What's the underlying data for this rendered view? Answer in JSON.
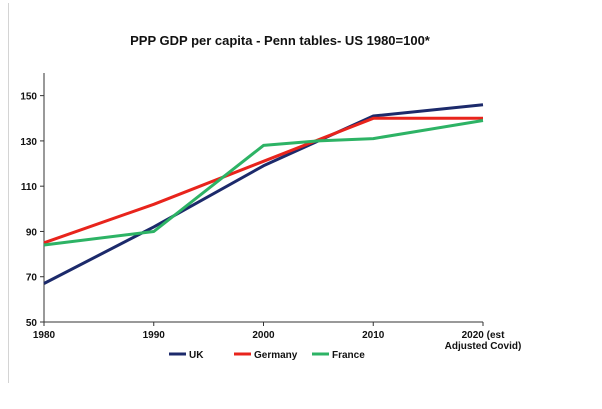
{
  "chart_data": {
    "type": "line",
    "title": "PPP GDP per capita - Penn tables- US 1980=100*",
    "xlabel": "",
    "ylabel": "",
    "categories": [
      "1980",
      "1990",
      "2000",
      "2010",
      "2020 (est Adjusted Covid)"
    ],
    "x_tick_labels": [
      [
        "1980"
      ],
      [
        "1990"
      ],
      [
        "2000"
      ],
      [
        "2010"
      ],
      [
        "2020 (est",
        "Adjusted Covid)"
      ]
    ],
    "x_values": [
      1980,
      1990,
      2000,
      2010,
      2020
    ],
    "xlim": [
      1980,
      2020
    ],
    "ylim": [
      50,
      160
    ],
    "y_ticks": [
      50,
      70,
      90,
      110,
      130,
      150
    ],
    "grid": false,
    "legend_position": "bottom",
    "series": [
      {
        "name": "UK",
        "color": "#1c2a6b",
        "points": [
          [
            1980,
            67
          ],
          [
            1990,
            92
          ],
          [
            2000,
            119
          ],
          [
            2010,
            141
          ],
          [
            2020,
            146
          ]
        ]
      },
      {
        "name": "Germany",
        "color": "#e8241c",
        "points": [
          [
            1980,
            85
          ],
          [
            1990,
            102
          ],
          [
            2000,
            121
          ],
          [
            2010,
            140
          ],
          [
            2020,
            140
          ]
        ]
      },
      {
        "name": "France",
        "color": "#2db365",
        "points": [
          [
            1980,
            84
          ],
          [
            1990,
            90
          ],
          [
            2000,
            128
          ],
          [
            2005,
            130
          ],
          [
            2010,
            131
          ],
          [
            2020,
            139
          ]
        ]
      }
    ]
  }
}
